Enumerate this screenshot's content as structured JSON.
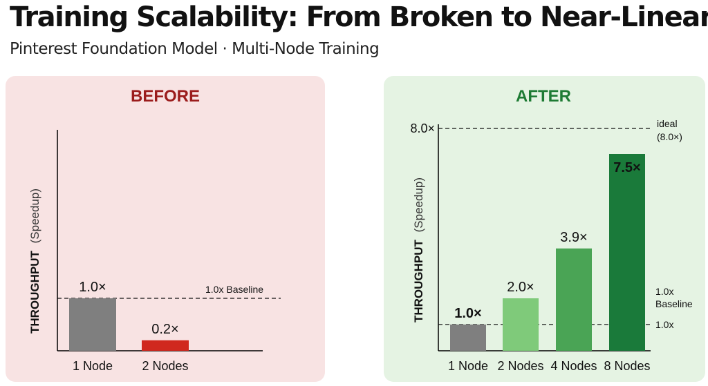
{
  "header": {
    "title": "Training Scalability: From Broken to Near-Linear",
    "subtitle": "Pinterest Foundation Model · Multi-Node Training"
  },
  "chart_data": [
    {
      "type": "bar",
      "title": "BEFORE",
      "categories": [
        "1 Node",
        "2 Nodes"
      ],
      "values": [
        1.0,
        0.2
      ],
      "value_labels": [
        "1.0×",
        "0.2×"
      ],
      "ylabel_bold": "THROUGHPUT",
      "ylabel_rest": "(Speedup)",
      "ylim": [
        0,
        3.52
      ],
      "reference_lines": [
        {
          "value": 1.0,
          "label": "1.0x Baseline",
          "style": "dashed"
        }
      ],
      "colors": {
        "panel": "#f8e3e3",
        "title": "#9b1c1c",
        "bars": [
          "#7f7f7f",
          "#d0281e"
        ]
      },
      "grid": false
    },
    {
      "type": "bar",
      "title": "AFTER",
      "categories": [
        "1 Node",
        "2 Nodes",
        "4 Nodes",
        "8 Nodes"
      ],
      "values": [
        1.0,
        2.0,
        3.9,
        7.5
      ],
      "value_labels": [
        "1.0×",
        "2.0×",
        "3.9×",
        "7.5×"
      ],
      "ylabel_bold": "THROUGHPUT",
      "ylabel_rest": "(Speedup)",
      "ylim": [
        0,
        8.4
      ],
      "ytick_label": "8.0×",
      "reference_lines": [
        {
          "value": 8.0,
          "label": [
            "ideal",
            "(8.0×)"
          ],
          "style": "dashed"
        },
        {
          "value": 1.0,
          "label": "1.0x",
          "style": "dashed"
        }
      ],
      "annotation": [
        "1.0x",
        "Baseline"
      ],
      "colors": {
        "panel": "#e5f3e3",
        "title": "#1e7b34",
        "bars": [
          "#7f7f7f",
          "#7fca7a",
          "#4aa455",
          "#1a7a3a"
        ]
      },
      "grid": false
    }
  ]
}
